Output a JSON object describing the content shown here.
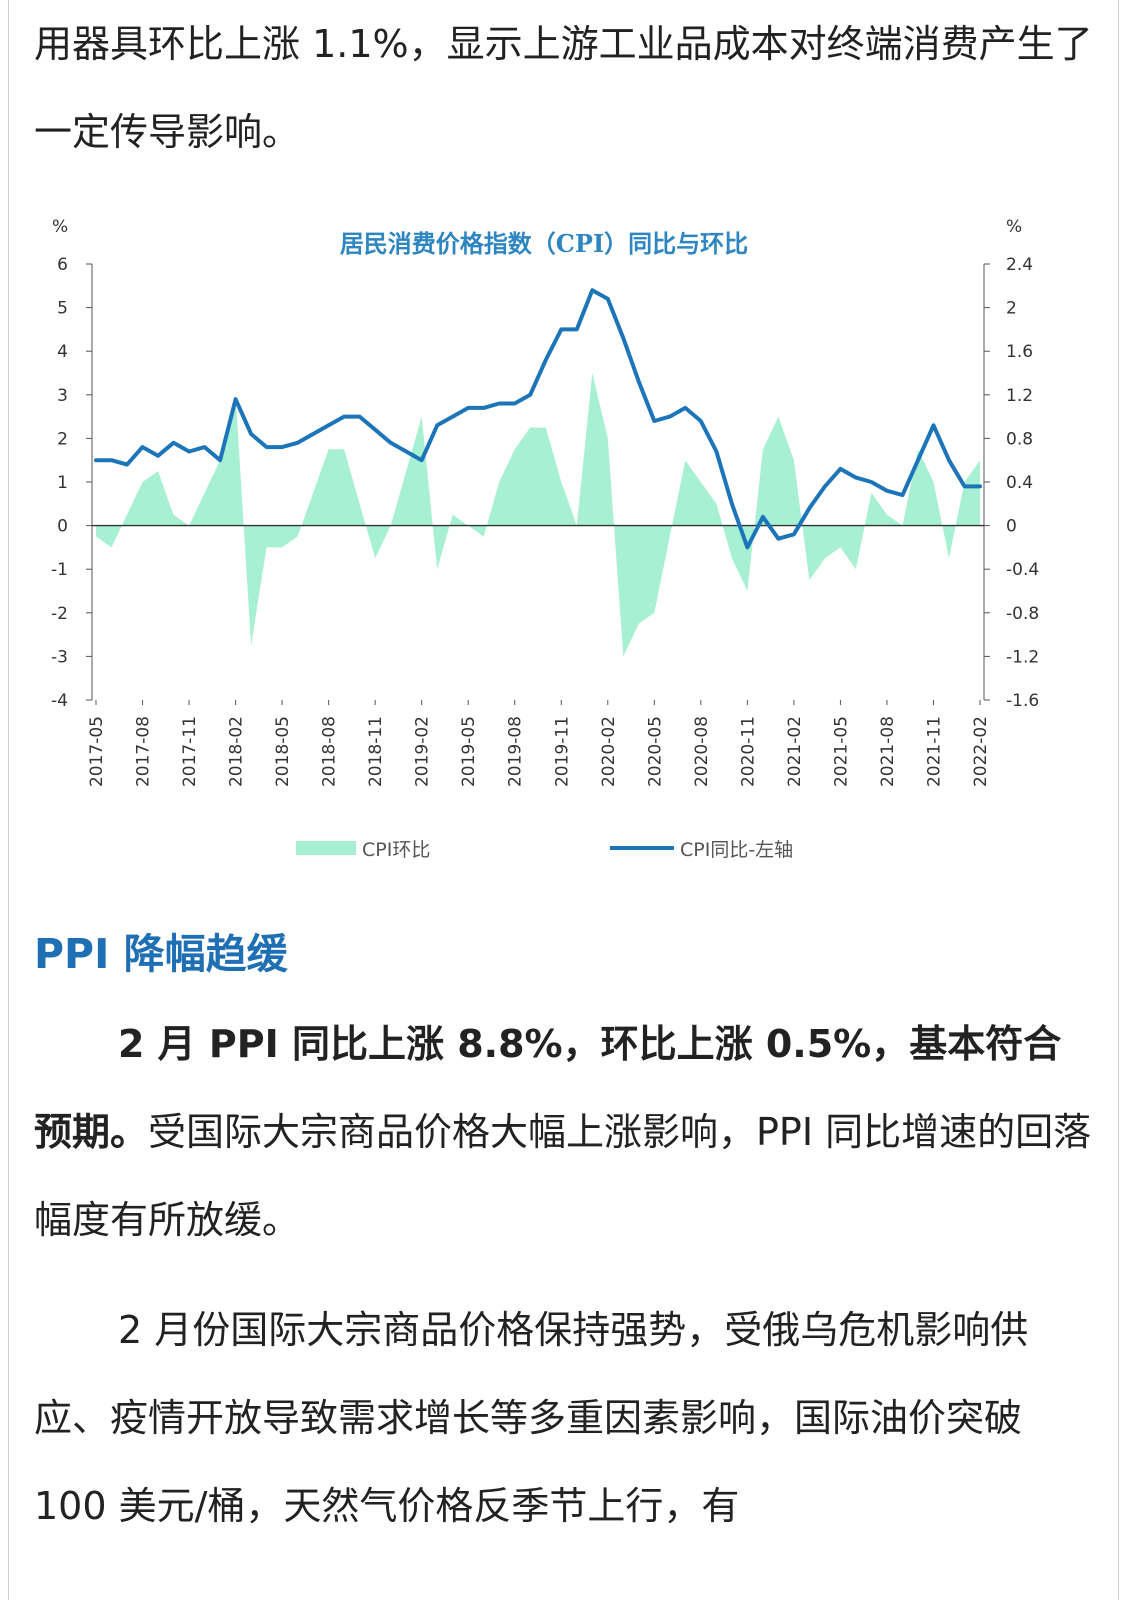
{
  "paragraph1": "用器具环比上涨 1.1%，显示上游工业品成本对终端消费产生了一定传导影响。",
  "heading": "PPI 降幅趋缓",
  "paragraph2": {
    "bold": "2 月 PPI 同比上涨 8.8%，环比上涨 0.5%，基本符合预期。",
    "normal": "受国际大宗商品价格大幅上涨影响，PPI 同比增速的回落幅度有所放缓。"
  },
  "paragraph3": "2 月份国际大宗商品价格保持强势，受俄乌危机影响供应、疫情开放导致需求增长等多重因素影响，国际油价突破 100 美元/桶，天然气价格反季节上行，有",
  "chart_data": {
    "type": "line+area",
    "title": "居民消费价格指数（CPI）同比与环比",
    "left_axis_unit": "%",
    "right_axis_unit": "%",
    "left_ylim": [
      -4,
      6
    ],
    "left_ticks": [
      "6",
      "5",
      "4",
      "3",
      "2",
      "1",
      "0",
      "-1",
      "-2",
      "-3",
      "-4"
    ],
    "right_ylim": [
      -1.6,
      2.4
    ],
    "right_ticks": [
      "2.4",
      "2",
      "1.6",
      "1.2",
      "0.8",
      "0.4",
      "0",
      "-0.4",
      "-0.8",
      "-1.2",
      "-1.6"
    ],
    "x_tick_labels": [
      "2017-05",
      "2017-08",
      "2017-11",
      "2018-02",
      "2018-05",
      "2018-08",
      "2018-11",
      "2019-02",
      "2019-05",
      "2019-08",
      "2019-11",
      "2020-02",
      "2020-05",
      "2020-08",
      "2020-11",
      "2021-02",
      "2021-05",
      "2021-08",
      "2021-11",
      "2022-02"
    ],
    "months": [
      "2017-05",
      "2017-06",
      "2017-07",
      "2017-08",
      "2017-09",
      "2017-10",
      "2017-11",
      "2017-12",
      "2018-01",
      "2018-02",
      "2018-03",
      "2018-04",
      "2018-05",
      "2018-06",
      "2018-07",
      "2018-08",
      "2018-09",
      "2018-10",
      "2018-11",
      "2018-12",
      "2019-01",
      "2019-02",
      "2019-03",
      "2019-04",
      "2019-05",
      "2019-06",
      "2019-07",
      "2019-08",
      "2019-09",
      "2019-10",
      "2019-11",
      "2019-12",
      "2020-01",
      "2020-02",
      "2020-03",
      "2020-04",
      "2020-05",
      "2020-06",
      "2020-07",
      "2020-08",
      "2020-09",
      "2020-10",
      "2020-11",
      "2020-12",
      "2021-01",
      "2021-02",
      "2021-03",
      "2021-04",
      "2021-05",
      "2021-06",
      "2021-07",
      "2021-08",
      "2021-09",
      "2021-10",
      "2021-11",
      "2021-12",
      "2022-01",
      "2022-02"
    ],
    "series": [
      {
        "name": "CPI环比",
        "axis": "right",
        "color": "#a8f0d4",
        "values": [
          -0.1,
          -0.2,
          0.1,
          0.4,
          0.5,
          0.1,
          0.0,
          0.3,
          0.6,
          1.2,
          -1.1,
          -0.2,
          -0.2,
          -0.1,
          0.3,
          0.7,
          0.7,
          0.2,
          -0.3,
          0.0,
          0.5,
          1.0,
          -0.4,
          0.1,
          0.0,
          -0.1,
          0.4,
          0.7,
          0.9,
          0.9,
          0.4,
          0.0,
          1.4,
          0.8,
          -1.2,
          -0.9,
          -0.8,
          -0.1,
          0.6,
          0.4,
          0.2,
          -0.3,
          -0.6,
          0.7,
          1.0,
          0.6,
          -0.5,
          -0.3,
          -0.2,
          -0.4,
          0.3,
          0.1,
          0.0,
          0.7,
          0.4,
          -0.3,
          0.4,
          0.6
        ]
      },
      {
        "name": "CPI同比-左轴",
        "axis": "left",
        "color": "#1b75b8",
        "values": [
          1.5,
          1.5,
          1.4,
          1.8,
          1.6,
          1.9,
          1.7,
          1.8,
          1.5,
          2.9,
          2.1,
          1.8,
          1.8,
          1.9,
          2.1,
          2.3,
          2.5,
          2.5,
          2.2,
          1.9,
          1.7,
          1.5,
          2.3,
          2.5,
          2.7,
          2.7,
          2.8,
          2.8,
          3.0,
          3.8,
          4.5,
          4.5,
          5.4,
          5.2,
          4.3,
          3.3,
          2.4,
          2.5,
          2.7,
          2.4,
          1.7,
          0.5,
          -0.5,
          0.2,
          -0.3,
          -0.2,
          0.4,
          0.9,
          1.3,
          1.1,
          1.0,
          0.8,
          0.7,
          1.5,
          2.3,
          1.5,
          0.9,
          0.9
        ]
      }
    ],
    "legend_position": "bottom",
    "grid": false
  }
}
